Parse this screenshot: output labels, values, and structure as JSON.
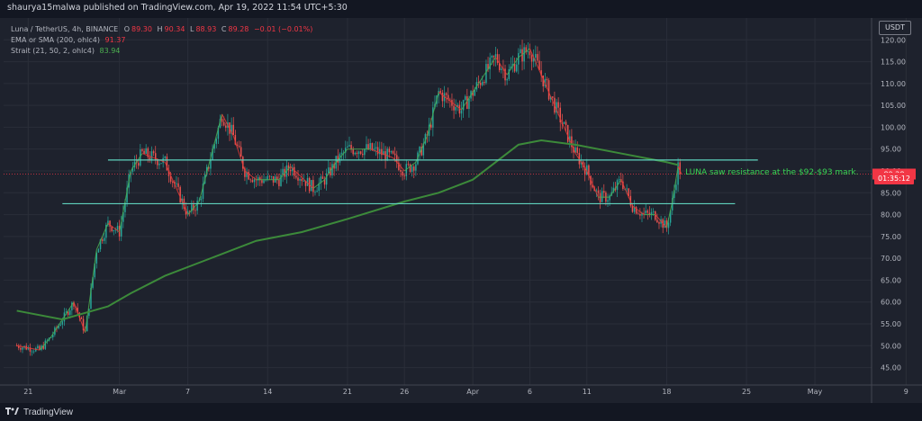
{
  "header": {
    "published": "shaurya15malwa published on TradingView.com, Apr 19, 2022 11:54 UTC+5:30"
  },
  "legend": {
    "symbol": "Luna / TetherUS, 4h, BINANCE",
    "o_label": "O",
    "o": "89.30",
    "h_label": "H",
    "h": "90.34",
    "l_label": "L",
    "l": "88.93",
    "c_label": "C",
    "c": "89.28",
    "change": "−0.01 (−0.01%)",
    "ema_label": "EMA or SMA (200, ohlc4)",
    "ema_value": "91.37",
    "strait_label": "Strait (21, 50, 2, ohlc4)",
    "strait_value": "83.94"
  },
  "currency": "USDT",
  "countdown": "01:35:12",
  "footer_brand": "TradingView",
  "colors": {
    "up": "#26a69a",
    "down": "#ef5350",
    "ema": "#3c8a3a",
    "strait_up": "#4caf50",
    "strait_down": "#e53935",
    "level": "#5fd1bd",
    "annotation": "#39d353",
    "price_line": "#f23645",
    "background": "#1e222d"
  },
  "chart_data": {
    "type": "candlestick",
    "symbol": "Luna / TetherUS",
    "interval": "4h",
    "exchange": "BINANCE",
    "ylim": [
      41,
      125
    ],
    "y_ticks": [
      45,
      50,
      55,
      60,
      65,
      70,
      75,
      80,
      85,
      90,
      95,
      100,
      105,
      110,
      115,
      120
    ],
    "y_tick_labels": [
      "45.00",
      "50.00",
      "55.00",
      "60.00",
      "65.00",
      "70.00",
      "75.00",
      "80.00",
      "85.00",
      "90.00",
      "95.00",
      "100.00",
      "105.00",
      "110.00",
      "115.00",
      "120.00"
    ],
    "x_ticks": [
      "2022-02-21",
      "2022-03-01",
      "2022-03-07",
      "2022-03-14",
      "2022-03-21",
      "2022-03-26",
      "2022-04-01",
      "2022-04-06",
      "2022-04-11",
      "2022-04-18",
      "2022-04-25",
      "2022-05-01",
      "2022-05-09"
    ],
    "x_tick_labels": [
      "21",
      "Mar",
      "7",
      "14",
      "21",
      "26",
      "Apr",
      "6",
      "11",
      "18",
      "25",
      "May",
      "9"
    ],
    "close_path": [
      [
        "2022-02-20",
        50
      ],
      [
        "2022-02-22",
        49
      ],
      [
        "2022-02-23",
        52
      ],
      [
        "2022-02-25",
        60
      ],
      [
        "2022-02-26",
        53
      ],
      [
        "2022-02-27",
        72
      ],
      [
        "2022-02-28",
        78
      ],
      [
        "2022-03-01",
        76
      ],
      [
        "2022-03-02",
        90
      ],
      [
        "2022-03-03",
        94
      ],
      [
        "2022-03-05",
        92
      ],
      [
        "2022-03-06",
        86
      ],
      [
        "2022-03-07",
        80
      ],
      [
        "2022-03-08",
        83
      ],
      [
        "2022-03-09",
        93
      ],
      [
        "2022-03-10",
        103
      ],
      [
        "2022-03-11",
        98
      ],
      [
        "2022-03-12",
        90
      ],
      [
        "2022-03-13",
        88
      ],
      [
        "2022-03-15",
        88
      ],
      [
        "2022-03-16",
        91
      ],
      [
        "2022-03-18",
        86
      ],
      [
        "2022-03-19",
        88
      ],
      [
        "2022-03-20",
        92
      ],
      [
        "2022-03-21",
        95
      ],
      [
        "2022-03-23",
        95
      ],
      [
        "2022-03-25",
        93
      ],
      [
        "2022-03-26",
        90
      ],
      [
        "2022-03-27",
        92
      ],
      [
        "2022-03-28",
        98
      ],
      [
        "2022-03-29",
        108
      ],
      [
        "2022-03-30",
        106
      ],
      [
        "2022-03-31",
        104
      ],
      [
        "2022-04-01",
        108
      ],
      [
        "2022-04-02",
        112
      ],
      [
        "2022-04-03",
        116
      ],
      [
        "2022-04-04",
        112
      ],
      [
        "2022-04-05",
        116
      ],
      [
        "2022-04-06",
        118
      ],
      [
        "2022-04-07",
        112
      ],
      [
        "2022-04-08",
        106
      ],
      [
        "2022-04-09",
        100
      ],
      [
        "2022-04-10",
        94
      ],
      [
        "2022-04-11",
        90
      ],
      [
        "2022-04-12",
        84
      ],
      [
        "2022-04-13",
        84
      ],
      [
        "2022-04-14",
        88
      ],
      [
        "2022-04-15",
        82
      ],
      [
        "2022-04-16",
        80
      ],
      [
        "2022-04-17",
        80
      ],
      [
        "2022-04-18",
        77
      ],
      [
        "2022-04-18.5",
        83
      ],
      [
        "2022-04-19",
        91
      ],
      [
        "2022-04-19.3",
        89.28
      ]
    ],
    "ema_200": [
      [
        "2022-02-20",
        58
      ],
      [
        "2022-02-24",
        56
      ],
      [
        "2022-02-28",
        59
      ],
      [
        "2022-03-02",
        62
      ],
      [
        "2022-03-05",
        66
      ],
      [
        "2022-03-08",
        69
      ],
      [
        "2022-03-10",
        71
      ],
      [
        "2022-03-13",
        74
      ],
      [
        "2022-03-17",
        76
      ],
      [
        "2022-03-21",
        79
      ],
      [
        "2022-03-26",
        83
      ],
      [
        "2022-03-29",
        85
      ],
      [
        "2022-04-01",
        88
      ],
      [
        "2022-04-05",
        96
      ],
      [
        "2022-04-07",
        97
      ],
      [
        "2022-04-10",
        96
      ],
      [
        "2022-04-14",
        94
      ],
      [
        "2022-04-18",
        92
      ],
      [
        "2022-04-19",
        91.37
      ]
    ],
    "horizontal_levels": [
      92.5,
      82.5
    ],
    "last_price": 89.28,
    "annotations": [
      {
        "text": "LUNA saw resistance at the $92-$93 mark.",
        "date": "2022-04-19",
        "price": 89.8
      }
    ]
  }
}
